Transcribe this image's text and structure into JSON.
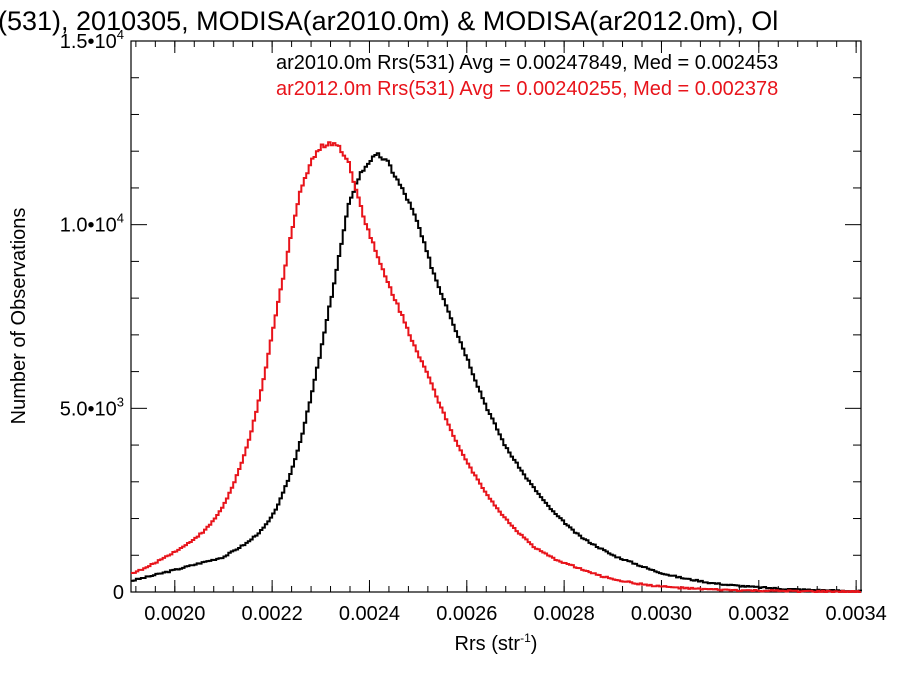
{
  "chart_data": {
    "type": "line",
    "title": "(531), 2010305, MODISA(ar2010.0m) & MODISA(ar2012.0m), Ol",
    "xlabel": "Rrs (str",
    "xlabel_sup": "-1",
    "xlabel_end": ")",
    "ylabel": "Number of Observations",
    "xlim": [
      0.00191,
      0.00341
    ],
    "ylim": [
      0,
      15000
    ],
    "grid": false,
    "legend_placement": "top-right",
    "x_ticks": [
      {
        "value": 0.002,
        "label": "0.0020"
      },
      {
        "value": 0.0022,
        "label": "0.0022"
      },
      {
        "value": 0.0024,
        "label": "0.0024"
      },
      {
        "value": 0.0026,
        "label": "0.0026"
      },
      {
        "value": 0.0028,
        "label": "0.0028"
      },
      {
        "value": 0.003,
        "label": "0.0030"
      },
      {
        "value": 0.0032,
        "label": "0.0032"
      },
      {
        "value": 0.0034,
        "label": "0.0034"
      }
    ],
    "y_ticks": [
      {
        "value": 0,
        "label": "0",
        "sup": ""
      },
      {
        "value": 5000,
        "label": "5.0•10",
        "sup": "3"
      },
      {
        "value": 10000,
        "label": "1.0•10",
        "sup": "4"
      },
      {
        "value": 15000,
        "label": "1.5•10",
        "sup": "4"
      }
    ],
    "series": [
      {
        "name": "ar2010.0m",
        "legend_text": "ar2010.0m Rrs(531) Avg = 0.00247849, Med = 0.002453",
        "color": "#000000",
        "x": [
          0.00191,
          0.002,
          0.00205,
          0.0021,
          0.00215,
          0.00218,
          0.0022,
          0.00222,
          0.00224,
          0.00226,
          0.00228,
          0.0023,
          0.00232,
          0.00234,
          0.00236,
          0.00238,
          0.0024,
          0.00242,
          0.00244,
          0.00246,
          0.00248,
          0.0025,
          0.00252,
          0.00254,
          0.00256,
          0.00258,
          0.0026,
          0.00262,
          0.00264,
          0.00266,
          0.00268,
          0.0027,
          0.00272,
          0.00274,
          0.00276,
          0.00278,
          0.0028,
          0.00282,
          0.00284,
          0.00286,
          0.00288,
          0.0029,
          0.00292,
          0.00294,
          0.00296,
          0.00298,
          0.003,
          0.00302,
          0.00304,
          0.00306,
          0.00308,
          0.0031,
          0.00314,
          0.00318,
          0.00322,
          0.00326,
          0.0033,
          0.00334,
          0.00338,
          0.00341
        ],
        "y": [
          300,
          600,
          780,
          950,
          1350,
          1700,
          2050,
          2600,
          3300,
          4200,
          5300,
          6550,
          7900,
          9300,
          10700,
          11350,
          11750,
          11900,
          11650,
          11150,
          10650,
          10000,
          9150,
          8400,
          7750,
          7050,
          6400,
          5700,
          5050,
          4500,
          3950,
          3550,
          3150,
          2800,
          2450,
          2150,
          1900,
          1650,
          1450,
          1300,
          1150,
          1000,
          900,
          800,
          700,
          600,
          520,
          450,
          390,
          340,
          300,
          250,
          190,
          145,
          110,
          80,
          60,
          45,
          30,
          20
        ]
      },
      {
        "name": "ar2012.0m",
        "legend_text": "ar2012.0m Rrs(531) Avg = 0.00240255, Med = 0.002378",
        "color": "#e8141b",
        "x": [
          0.00191,
          0.00194,
          0.00198,
          0.00202,
          0.00206,
          0.00208,
          0.0021,
          0.00212,
          0.00214,
          0.00216,
          0.00218,
          0.0022,
          0.00222,
          0.00224,
          0.00226,
          0.00228,
          0.0023,
          0.00232,
          0.00234,
          0.00236,
          0.00238,
          0.0024,
          0.00242,
          0.00244,
          0.00246,
          0.00248,
          0.0025,
          0.00252,
          0.00254,
          0.00256,
          0.00258,
          0.0026,
          0.00262,
          0.00264,
          0.00266,
          0.00268,
          0.0027,
          0.00272,
          0.00274,
          0.00276,
          0.00278,
          0.0028,
          0.00282,
          0.00284,
          0.00286,
          0.00288,
          0.0029,
          0.00292,
          0.00294,
          0.00296,
          0.00298,
          0.003,
          0.00304,
          0.00308,
          0.00312,
          0.00316,
          0.0032,
          0.00326,
          0.00332,
          0.00338,
          0.00341
        ],
        "y": [
          500,
          650,
          950,
          1250,
          1650,
          1950,
          2350,
          2900,
          3600,
          4500,
          5600,
          7000,
          8400,
          9800,
          11000,
          11750,
          12100,
          12250,
          12100,
          11600,
          10600,
          9750,
          9000,
          8350,
          7750,
          7100,
          6500,
          5900,
          5250,
          4650,
          4050,
          3550,
          3100,
          2700,
          2300,
          2000,
          1700,
          1450,
          1200,
          1050,
          900,
          800,
          700,
          600,
          500,
          420,
          360,
          300,
          250,
          210,
          180,
          150,
          110,
          80,
          60,
          45,
          35,
          25,
          15,
          10,
          5
        ]
      }
    ]
  }
}
